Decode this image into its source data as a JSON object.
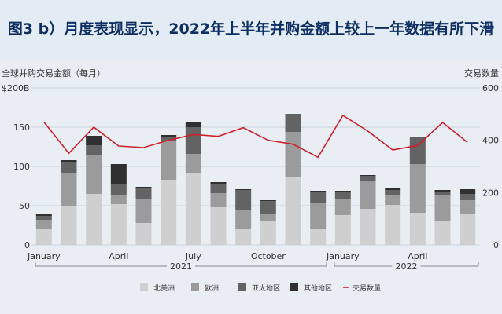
{
  "title": "图3 b）月度表现显示，2022年上半年并购金额上较上一年数据有所下滑",
  "chart_data": {
    "type": "bar",
    "stacked": true,
    "left_axis_title": "全球并购交易金额（每月）",
    "right_axis_title": "交易数量",
    "left_unit_label": "$200B",
    "left_ticks": [
      "",
      "150",
      "100",
      "50",
      "0"
    ],
    "right_ticks": [
      "600",
      "400",
      "200",
      "0"
    ],
    "ylim_left": [
      0,
      200
    ],
    "ylim_right": [
      0,
      600
    ],
    "x_tick_labels": [
      "January",
      "April",
      "July",
      "October",
      "January",
      "April"
    ],
    "year_labels": [
      "2021",
      "2022"
    ],
    "grid": true,
    "series": [
      {
        "name": "北美洲",
        "color": "#cfcfcf",
        "values": [
          20,
          50,
          65,
          52,
          28,
          83,
          91,
          48,
          20,
          30,
          86,
          20,
          38,
          46,
          51,
          41,
          31,
          39
        ]
      },
      {
        "name": "欧洲",
        "color": "#9b9b9b",
        "values": [
          12,
          42,
          50,
          12,
          30,
          50,
          25,
          18,
          25,
          10,
          58,
          33,
          20,
          36,
          12,
          62,
          33,
          18
        ]
      },
      {
        "name": "亚太地区",
        "color": "#636363",
        "values": [
          5,
          13,
          12,
          14,
          14,
          5,
          34,
          12,
          25,
          16,
          23,
          15,
          10,
          6,
          7,
          34,
          4,
          8
        ]
      },
      {
        "name": "其他地区",
        "color": "#303030",
        "values": [
          3,
          3,
          12,
          25,
          2,
          2,
          6,
          2,
          1,
          1,
          0,
          1,
          1,
          1,
          2,
          1,
          2,
          6
        ]
      }
    ],
    "line_series": {
      "name": "交易数量",
      "color": "#d11f2a",
      "values": [
        470,
        350,
        450,
        378,
        372,
        400,
        422,
        415,
        448,
        400,
        385,
        335,
        495,
        435,
        363,
        380,
        468,
        392
      ]
    }
  }
}
